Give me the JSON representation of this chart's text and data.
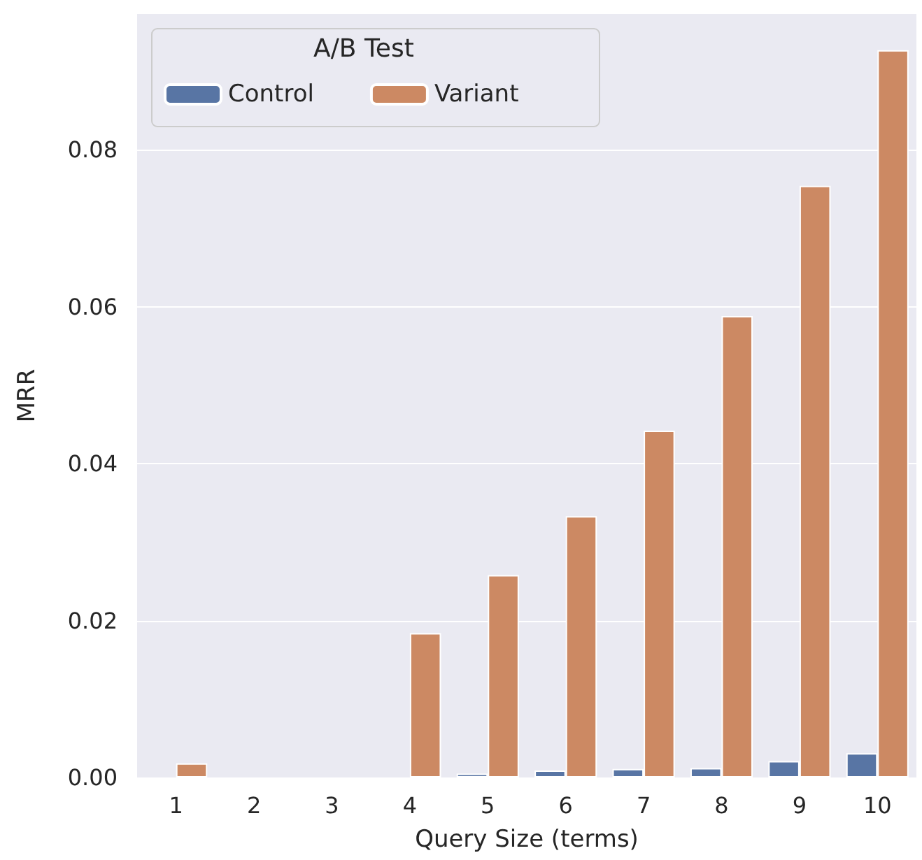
{
  "chart_data": {
    "type": "bar",
    "xlabel": "Query Size (terms)",
    "ylabel": "MRR",
    "legend_title": "A/B Test",
    "categories": [
      "1",
      "2",
      "3",
      "4",
      "5",
      "6",
      "7",
      "8",
      "9",
      "10"
    ],
    "series": [
      {
        "name": "Control",
        "color": "#5875a4",
        "values": [
          0,
          0,
          0,
          0,
          0.0005,
          0.0009,
          0.0011,
          0.0012,
          0.0021,
          0.0031
        ]
      },
      {
        "name": "Variant",
        "color": "#cc8963",
        "values": [
          0.0018,
          0,
          0,
          0.0184,
          0.0258,
          0.0333,
          0.0442,
          0.0588,
          0.0754,
          0.0927
        ]
      }
    ],
    "ylim": [
      0,
      0.0973
    ],
    "yticks": [
      {
        "value": 0,
        "label": "0.00"
      },
      0.02,
      0.04,
      0.06,
      0.08
    ],
    "grid": "y",
    "legend": "top left"
  }
}
